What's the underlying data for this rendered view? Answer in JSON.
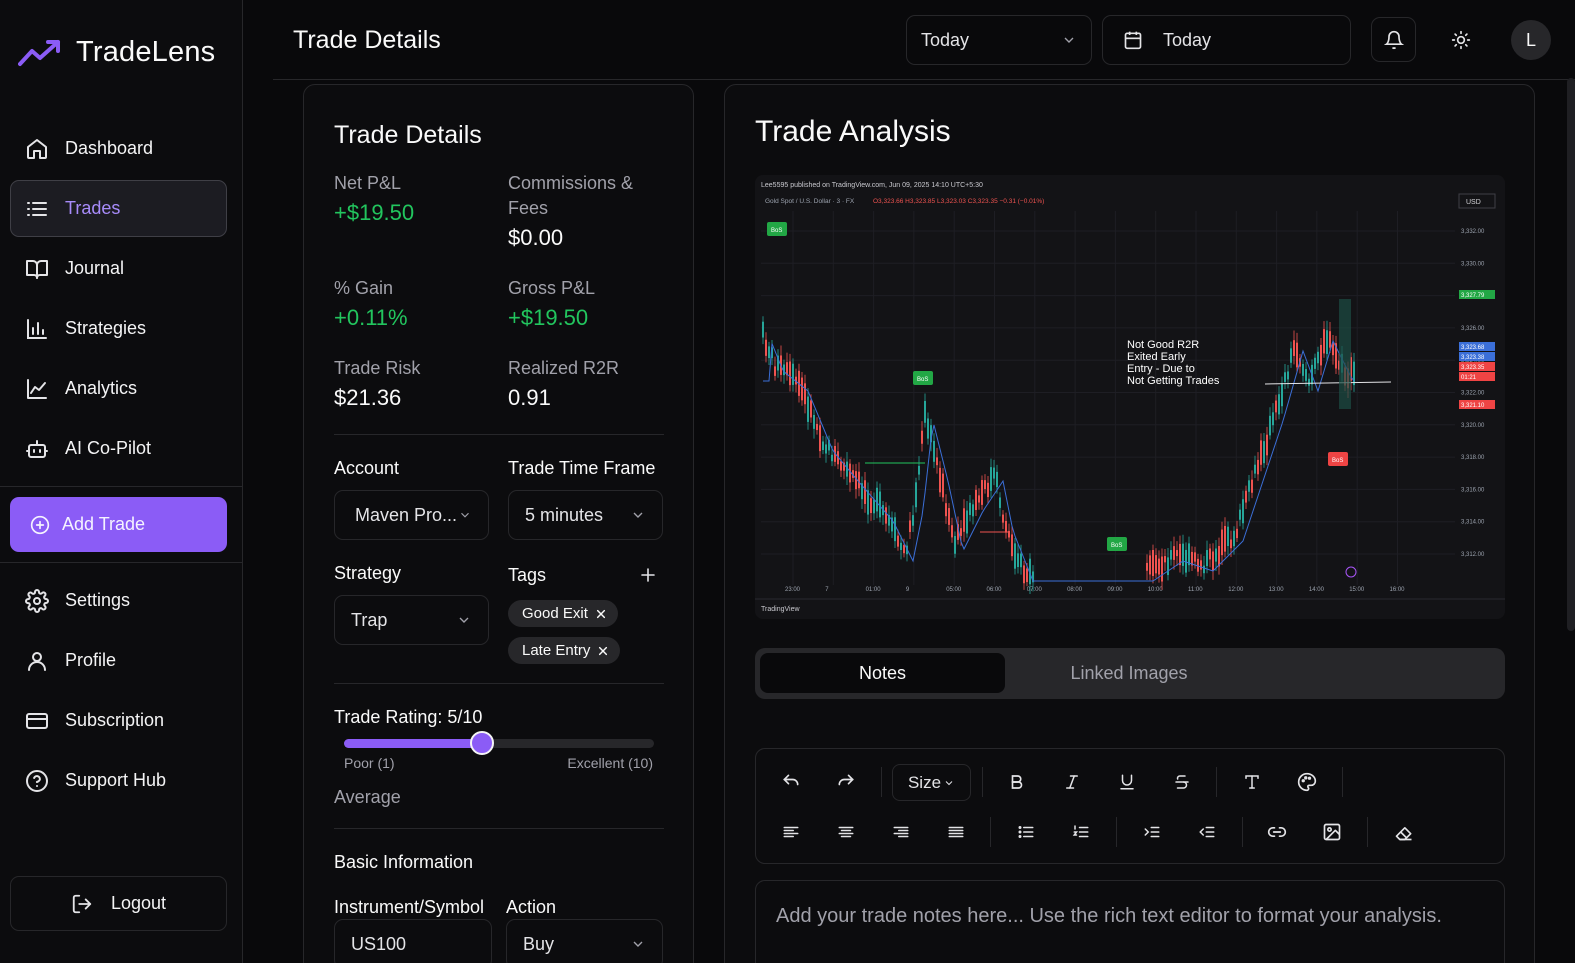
{
  "app": {
    "name": "TradeLens"
  },
  "sidebar": {
    "items": [
      {
        "label": "Dashboard",
        "icon": "home-icon"
      },
      {
        "label": "Trades",
        "icon": "list-icon",
        "active": true
      },
      {
        "label": "Journal",
        "icon": "book-icon"
      },
      {
        "label": "Strategies",
        "icon": "bar-chart-icon"
      },
      {
        "label": "Analytics",
        "icon": "line-chart-icon"
      },
      {
        "label": "AI Co-Pilot",
        "icon": "bot-icon"
      }
    ],
    "add_trade_label": "Add Trade",
    "bottom_items": [
      {
        "label": "Settings",
        "icon": "gear-icon"
      },
      {
        "label": "Profile",
        "icon": "user-icon"
      },
      {
        "label": "Subscription",
        "icon": "credit-card-icon"
      },
      {
        "label": "Support Hub",
        "icon": "help-icon"
      }
    ],
    "logout_label": "Logout"
  },
  "header": {
    "title": "Trade Details",
    "period_select": "Today",
    "date_picker": "Today",
    "avatar_initial": "L"
  },
  "trade_details": {
    "title": "Trade Details",
    "net_pl_label": "Net P&L",
    "net_pl": "+$19.50",
    "commissions_label": "Commissions & Fees",
    "commissions": "$0.00",
    "gain_label": "% Gain",
    "gain": "+0.11%",
    "gross_pl_label": "Gross P&L",
    "gross_pl": "+$19.50",
    "risk_label": "Trade Risk",
    "risk": "$21.36",
    "r2r_label": "Realized R2R",
    "r2r": "0.91",
    "account_label": "Account",
    "account": "Maven Pro...",
    "timeframe_label": "Trade Time Frame",
    "timeframe": "5 minutes",
    "strategy_label": "Strategy",
    "strategy": "Trap",
    "tags_label": "Tags",
    "tags": [
      "Good Exit",
      "Late Entry"
    ],
    "rating_label": "Trade Rating: 5/10",
    "rating_value": 5,
    "rating_max": 10,
    "rating_min_label": "Poor (1)",
    "rating_max_label": "Excellent (10)",
    "rating_text": "Average",
    "basic_info_label": "Basic Information",
    "instrument_label": "Instrument/Symbol",
    "instrument": "US100",
    "action_label": "Action",
    "action": "Buy"
  },
  "analysis": {
    "title": "Trade Analysis",
    "screenshot": {
      "header": "Lee5595 published on TradingView.com, Jun 09, 2025 14:10 UTC+5:30",
      "symbol_line": "Gold Spot / U.S. Dollar · 3 · FX",
      "ohlc": "O3,323.66 H3,323.85 L3,323.03 C3,323.35 −0.31 (−0.01%)",
      "currency": "USD",
      "annotation": [
        "Not Good R2R",
        "Exited Early",
        "Entry - Due to",
        "Not Getting Trades"
      ],
      "bos_label": "BoS",
      "y_ticks": [
        "3,332.00",
        "3,330.00",
        "3,328.00",
        "3,326.00",
        "3,324.00",
        "3,322.00",
        "3,320.00",
        "3,318.00",
        "3,316.00",
        "3,314.00",
        "3,312.00"
      ],
      "price_tags": [
        "3,327.79",
        "3,323.68",
        "3,323.38",
        "3,323.35",
        "01:21",
        "3,321.10"
      ],
      "x_ticks": [
        "23:00",
        "7",
        "01:00",
        "9",
        "05:00",
        "06:00",
        "07:00",
        "08:00",
        "09:00",
        "10:00",
        "11:00",
        "12:00",
        "13:00",
        "14:00",
        "15:00",
        "16:00"
      ],
      "brand": "TradingView",
      "colors": {
        "up": "#26a69a",
        "down": "#ef5350",
        "bos": "#22a745",
        "ma": "#3b6fd8"
      }
    },
    "tabs": [
      "Notes",
      "Linked Images"
    ],
    "toolbar": {
      "size_label": "Size"
    },
    "editor_placeholder": "Add your trade notes here... Use the rich text editor to format your analysis."
  },
  "colors": {
    "accent": "#8b5cf6",
    "positive": "#22c55e",
    "background": "#09090b"
  }
}
